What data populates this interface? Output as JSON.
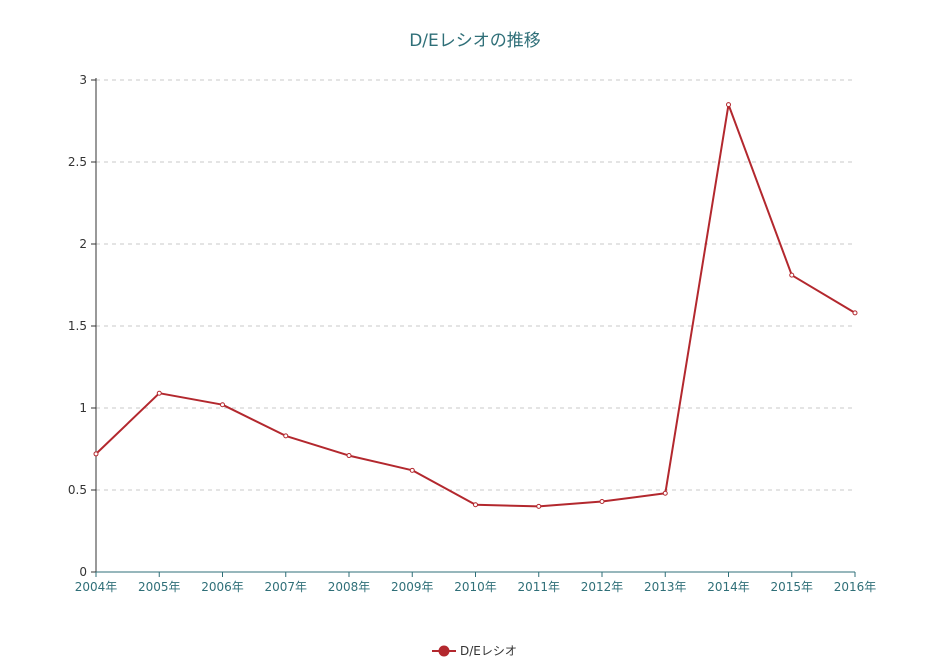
{
  "chart_data": {
    "type": "line",
    "title": "D/Eレシオの推移",
    "categories": [
      "2004年",
      "2005年",
      "2006年",
      "2007年",
      "2008年",
      "2009年",
      "2010年",
      "2011年",
      "2012年",
      "2013年",
      "2014年",
      "2015年",
      "2016年"
    ],
    "series": [
      {
        "name": "D/Eレシオ",
        "color": "#b3282e",
        "values": [
          0.72,
          1.09,
          1.02,
          0.83,
          0.71,
          0.62,
          0.41,
          0.4,
          0.43,
          0.48,
          2.85,
          1.81,
          1.58
        ]
      }
    ],
    "ylim": [
      0,
      3
    ],
    "yticks": [
      "0",
      "0.5",
      "1",
      "1.5",
      "2",
      "2.5",
      "3"
    ],
    "grid": true,
    "legend_position": "bottom-center"
  }
}
